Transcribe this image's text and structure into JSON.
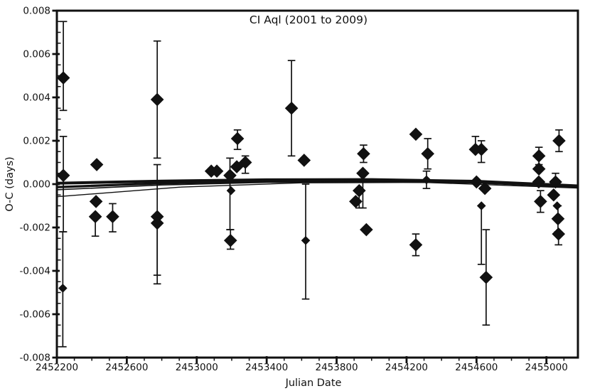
{
  "page": {
    "background_color": "#ffffff",
    "ink_color": "#111111"
  },
  "chart_data": {
    "type": "scatter",
    "title": "CI Aql (2001 to 2009)",
    "xlabel": "Julian Date",
    "ylabel": "O-C (days)",
    "xlim": [
      2452200,
      2455180
    ],
    "ylim": [
      -0.008,
      0.008
    ],
    "grid": "off",
    "legend": "none",
    "marker": "filled-diamond",
    "marker_color": "#111111",
    "x_major_ticks": [
      2452200,
      2452600,
      2453000,
      2453400,
      2453800,
      2454200,
      2454600,
      2455000
    ],
    "x_tick_labels": [
      "2452200",
      "2452600",
      "2453000",
      "2453400",
      "2453800",
      "2454200",
      "2454600",
      "2455000"
    ],
    "x_minor_step": 100,
    "y_major_ticks": [
      0.008,
      0.006,
      0.004,
      0.002,
      0.0,
      -0.002,
      -0.004,
      -0.006,
      -0.008
    ],
    "y_tick_labels": [
      "0.008",
      "0.006",
      "0.004",
      "0.002",
      "0.000",
      "-0.002",
      "-0.004",
      "-0.006",
      "-0.008"
    ],
    "y_minor_step": 0.0005,
    "points": [
      {
        "jd": 2452237,
        "oc": 0.0049,
        "eu": 0.0026,
        "ed": 0.0015,
        "sz": "L"
      },
      {
        "jd": 2452237,
        "oc": 0.0004,
        "eu": 0.0018,
        "ed": 0.0026,
        "sz": "L"
      },
      {
        "jd": 2452234,
        "oc": -0.0048,
        "eu": 0.0026,
        "ed": 0.0027,
        "sz": "S"
      },
      {
        "jd": 2452428,
        "oc": 0.0009,
        "eu": 0,
        "ed": 0,
        "sz": "L"
      },
      {
        "jd": 2452424,
        "oc": -0.0008,
        "eu": 0,
        "ed": 0,
        "sz": "L"
      },
      {
        "jd": 2452420,
        "oc": -0.0015,
        "eu": 0,
        "ed": 0.0009,
        "sz": "L"
      },
      {
        "jd": 2452519,
        "oc": -0.0015,
        "eu": 0.0006,
        "ed": 0.0007,
        "sz": "L"
      },
      {
        "jd": 2452774,
        "oc": 0.0039,
        "eu": 0.0027,
        "ed": 0.0027,
        "sz": "L"
      },
      {
        "jd": 2452774,
        "oc": -0.0015,
        "eu": 0.0024,
        "ed": 0.0027,
        "sz": "L"
      },
      {
        "jd": 2452774,
        "oc": -0.0018,
        "eu": 0,
        "ed": 0.0028,
        "sz": "L"
      },
      {
        "jd": 2453083,
        "oc": 0.0006,
        "eu": 0,
        "ed": 0,
        "sz": "L"
      },
      {
        "jd": 2453115,
        "oc": 0.0006,
        "eu": 0,
        "ed": 0,
        "sz": "L"
      },
      {
        "jd": 2453190,
        "oc": 0.0004,
        "eu": 0.0008,
        "ed": 0.0025,
        "sz": "L"
      },
      {
        "jd": 2453196,
        "oc": -0.0003,
        "eu": 0,
        "ed": 0,
        "sz": "S"
      },
      {
        "jd": 2453193,
        "oc": -0.0026,
        "eu": 0.0005,
        "ed": 0.0004,
        "sz": "L"
      },
      {
        "jd": 2453229,
        "oc": 0.0008,
        "eu": 0,
        "ed": 0,
        "sz": "L"
      },
      {
        "jd": 2453233,
        "oc": 0.0021,
        "eu": 0.0004,
        "ed": 0.0005,
        "sz": "L"
      },
      {
        "jd": 2453278,
        "oc": 0.001,
        "eu": 0.0003,
        "ed": 0.0005,
        "sz": "L"
      },
      {
        "jd": 2453542,
        "oc": 0.0035,
        "eu": 0.0022,
        "ed": 0.0022,
        "sz": "L"
      },
      {
        "jd": 2453614,
        "oc": 0.0011,
        "eu": 0,
        "ed": 0,
        "sz": "L"
      },
      {
        "jd": 2453623,
        "oc": -0.0026,
        "eu": 0.0026,
        "ed": 0.0027,
        "sz": "S"
      },
      {
        "jd": 2453909,
        "oc": -0.0008,
        "eu": 0,
        "ed": 0,
        "sz": "L"
      },
      {
        "jd": 2453929,
        "oc": -0.0003,
        "eu": 0,
        "ed": 0.0008,
        "sz": "L"
      },
      {
        "jd": 2453950,
        "oc": 0.0005,
        "eu": 0,
        "ed": 0.0016,
        "sz": "L"
      },
      {
        "jd": 2453954,
        "oc": 0.0014,
        "eu": 0.0004,
        "ed": 0.0004,
        "sz": "L"
      },
      {
        "jd": 2453970,
        "oc": -0.0021,
        "eu": 0,
        "ed": 0,
        "sz": "L"
      },
      {
        "jd": 2454253,
        "oc": 0.0023,
        "eu": 0,
        "ed": 0,
        "sz": "L"
      },
      {
        "jd": 2454253,
        "oc": -0.0028,
        "eu": 0.0005,
        "ed": 0.0005,
        "sz": "L"
      },
      {
        "jd": 2454321,
        "oc": 0.0014,
        "eu": 0.0007,
        "ed": 0.0007,
        "sz": "L"
      },
      {
        "jd": 2454314,
        "oc": 0.0002,
        "eu": 0.0004,
        "ed": 0.0004,
        "sz": "S"
      },
      {
        "jd": 2454594,
        "oc": 0.0016,
        "eu": 0.0006,
        "ed": 0,
        "sz": "L"
      },
      {
        "jd": 2454628,
        "oc": 0.0016,
        "eu": 0.0004,
        "ed": 0.0006,
        "sz": "L"
      },
      {
        "jd": 2454600,
        "oc": 0.0001,
        "eu": 0,
        "ed": 0,
        "sz": "L"
      },
      {
        "jd": 2454648,
        "oc": -0.0002,
        "eu": 0,
        "ed": 0,
        "sz": "L"
      },
      {
        "jd": 2454628,
        "oc": -0.001,
        "eu": 0,
        "ed": 0.0027,
        "sz": "S"
      },
      {
        "jd": 2454655,
        "oc": -0.0043,
        "eu": 0.0022,
        "ed": 0.0022,
        "sz": "L"
      },
      {
        "jd": 2454957,
        "oc": 0.0013,
        "eu": 0.0004,
        "ed": 0.0004,
        "sz": "L"
      },
      {
        "jd": 2454957,
        "oc": 0.0007,
        "eu": 0,
        "ed": 0,
        "sz": "L"
      },
      {
        "jd": 2454956,
        "oc": 0.0001,
        "eu": 0,
        "ed": 0,
        "sz": "L"
      },
      {
        "jd": 2454966,
        "oc": -0.0008,
        "eu": 0.0005,
        "ed": 0.0005,
        "sz": "L"
      },
      {
        "jd": 2455041,
        "oc": -0.0005,
        "eu": 0,
        "ed": 0,
        "sz": "L"
      },
      {
        "jd": 2455052,
        "oc": 0.0001,
        "eu": 0.0004,
        "ed": 0,
        "sz": "L"
      },
      {
        "jd": 2455061,
        "oc": -0.001,
        "eu": 0,
        "ed": 0,
        "sz": "S"
      },
      {
        "jd": 2455066,
        "oc": -0.0016,
        "eu": 0.0006,
        "ed": 0.0006,
        "sz": "L"
      },
      {
        "jd": 2455069,
        "oc": -0.0023,
        "eu": 0,
        "ed": 0.0005,
        "sz": "L"
      },
      {
        "jd": 2455072,
        "oc": 0.002,
        "eu": 0.0005,
        "ed": 0.0005,
        "sz": "L"
      }
    ],
    "fit_curves": [
      {
        "name": "fit-curve-thick-upper",
        "width": 4.0,
        "pts": [
          [
            2452200,
            4e-05
          ],
          [
            2452800,
            0.00014
          ],
          [
            2453400,
            0.0002
          ],
          [
            2454000,
            0.00021
          ],
          [
            2454600,
            0.00013
          ],
          [
            2455180,
            -8e-05
          ]
        ]
      },
      {
        "name": "fit-curve-thick-lower",
        "width": 3.2,
        "pts": [
          [
            2452200,
            -0.00014
          ],
          [
            2452800,
            4e-05
          ],
          [
            2453400,
            0.00014
          ],
          [
            2454000,
            0.00016
          ],
          [
            2454600,
            9e-05
          ],
          [
            2455180,
            -0.00012
          ]
        ]
      },
      {
        "name": "fit-curve-thin-1",
        "width": 1.6,
        "pts": [
          [
            2452200,
            -0.00026
          ],
          [
            2452800,
            -4e-05
          ],
          [
            2453400,
            8e-05
          ],
          [
            2454000,
            0.00011
          ],
          [
            2454600,
            5e-05
          ],
          [
            2455180,
            -0.00015
          ]
        ]
      },
      {
        "name": "fit-curve-thin-2",
        "width": 1.4,
        "pts": [
          [
            2452200,
            -0.00058
          ],
          [
            2452900,
            -0.00014
          ],
          [
            2453600,
            6e-05
          ],
          [
            2454300,
            8e-05
          ],
          [
            2455180,
            -0.00018
          ]
        ]
      }
    ]
  }
}
